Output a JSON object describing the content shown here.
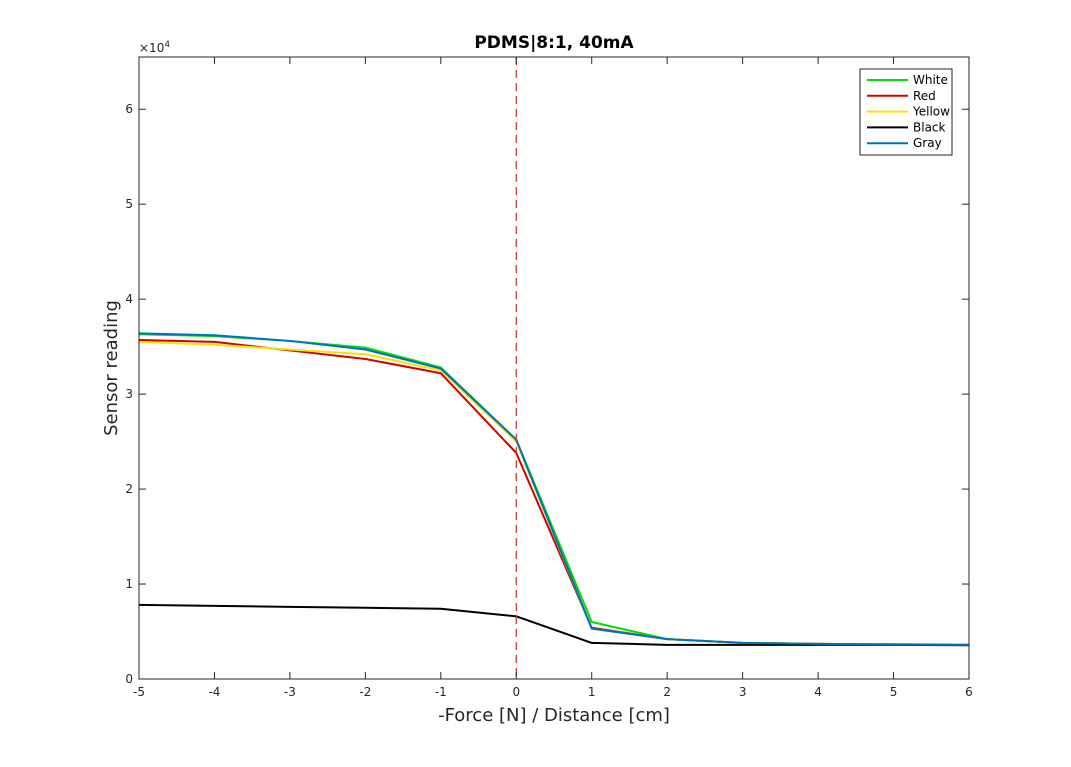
{
  "chart_data": {
    "type": "line",
    "title": "PDMS|8:1, 40mA",
    "xlabel": "-Force [N] / Distance [cm]",
    "ylabel": "Sensor reading",
    "y_exponent_label": "×10",
    "y_exponent_power": "4",
    "xlim": [
      -5,
      6
    ],
    "ylim": [
      0,
      65500
    ],
    "x_ticks": [
      "-5",
      "-4",
      "-3",
      "-2",
      "-1",
      "0",
      "1",
      "2",
      "3",
      "4",
      "5",
      "6"
    ],
    "y_ticks": [
      "0",
      "1",
      "2",
      "3",
      "4",
      "5",
      "6"
    ],
    "x": [
      -5,
      -4,
      -3,
      -2,
      -1,
      0,
      1,
      2,
      3,
      4,
      5,
      6
    ],
    "vline": {
      "x": 0,
      "color": "#d62728",
      "style": "dashed"
    },
    "legend_position": "top-right",
    "grid": false,
    "series": [
      {
        "name": "White",
        "color": "#00e000",
        "values": [
          36300,
          36100,
          35600,
          34900,
          32800,
          25200,
          6000,
          4200,
          3800,
          3700,
          3650,
          3650
        ]
      },
      {
        "name": "Red",
        "color": "#d40000",
        "values": [
          35700,
          35500,
          34600,
          33700,
          32200,
          23800,
          5400,
          4200,
          3800,
          3700,
          3650,
          3600
        ]
      },
      {
        "name": "Yellow",
        "color": "#f5e400",
        "values": [
          35500,
          35200,
          34700,
          34200,
          32500,
          25000,
          5300,
          4200,
          3800,
          3700,
          3650,
          3650
        ]
      },
      {
        "name": "Black",
        "color": "#000000",
        "values": [
          7800,
          7700,
          7600,
          7500,
          7400,
          6600,
          3800,
          3600,
          3600,
          3600,
          3600,
          3550
        ]
      },
      {
        "name": "Gray",
        "color": "#0072bd",
        "values": [
          36400,
          36200,
          35600,
          34700,
          32700,
          25200,
          5300,
          4200,
          3800,
          3700,
          3650,
          3600
        ]
      }
    ]
  }
}
